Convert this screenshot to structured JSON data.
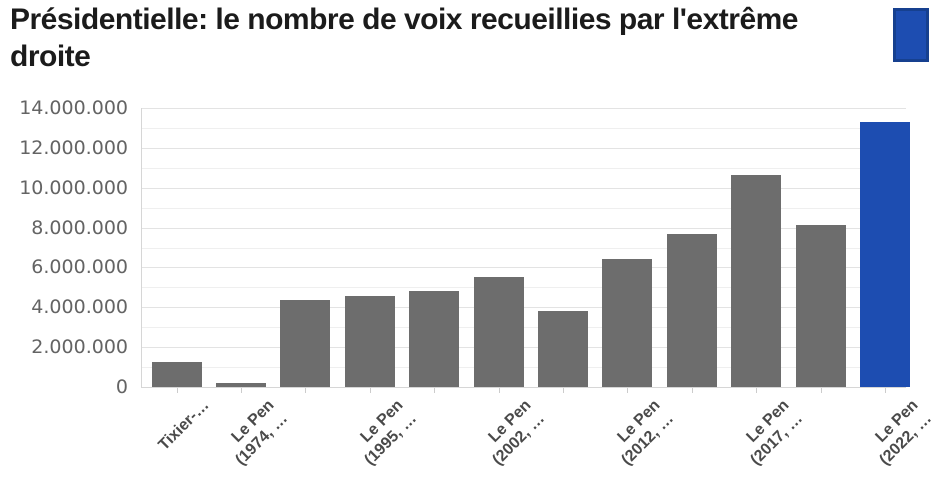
{
  "header": {
    "title": "Présidentielle: le nombre de voix recueillies par l'extrême droite"
  },
  "colors": {
    "title_text": "#1b1b1b",
    "bar": "#6d6d6d",
    "highlight": "#1d4db1",
    "badge_fill": "#1d4db1",
    "badge_border": "#16408f",
    "grid_minor": "#efefef",
    "grid_major": "#e3e3e3",
    "axis_line": "#d6d6d6",
    "axis_text": "#646464",
    "category_text": "#4a4a4a"
  },
  "chart_data": {
    "type": "bar",
    "title": "Présidentielle: le nombre de voix recueillies par l'extrême droite",
    "categories": [
      "Tixier-…",
      "Le Pen\n(1974, …",
      "",
      "Le Pen\n(1995, …",
      "",
      "Le Pen\n(2002, …",
      "",
      "Le Pen\n(2012, …",
      "",
      "Le Pen\n(2017, …",
      "",
      "Le Pen\n(2022, …"
    ],
    "values": [
      1260208,
      190921,
      4376742,
      4570838,
      4804713,
      5525032,
      3834530,
      6421426,
      7678491,
      10638475,
      8133828,
      13288686
    ],
    "highlight_index": 11,
    "xlabel": "",
    "ylabel": "",
    "ylim": [
      0,
      14000000
    ],
    "ytick_interval": 2000000,
    "minor_grid_interval": 1000000,
    "ytick_labels": [
      "0",
      "2.000.000",
      "4.000.000",
      "6.000.000",
      "8.000.000",
      "10.000.000",
      "12.000.000",
      "14.000.000"
    ],
    "grid": true,
    "legend": false
  }
}
